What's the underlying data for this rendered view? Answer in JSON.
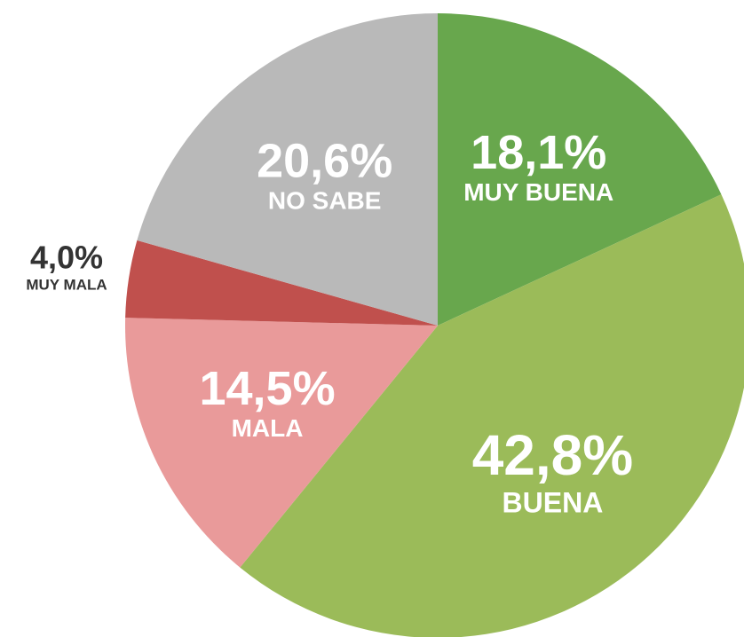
{
  "chart_data": {
    "type": "pie",
    "categories": [
      "MUY BUENA",
      "BUENA",
      "MALA",
      "MUY MALA",
      "NO SABE"
    ],
    "values": [
      18.1,
      42.8,
      14.5,
      4.0,
      20.6
    ],
    "value_labels": [
      "18,1%",
      "42,8%",
      "14,5%",
      "4,0%",
      "20,6%"
    ],
    "colors": [
      "#68a74d",
      "#9bbb59",
      "#e99a9a",
      "#c0504d",
      "#b9b9b9"
    ]
  }
}
